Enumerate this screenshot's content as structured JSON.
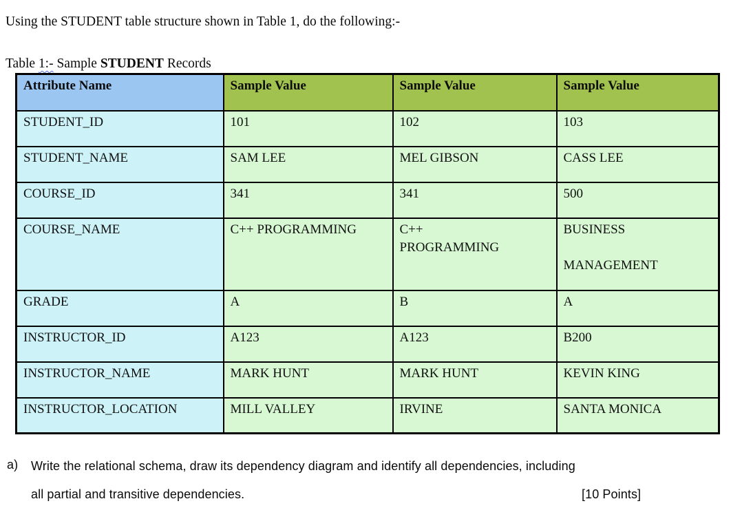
{
  "page": {
    "intro": "Using the STUDENT table structure shown in Table 1, do the following:-",
    "caption": {
      "part1": "Table ",
      "squiggle": "1:-",
      "part2": " Sample ",
      "bold": "STUDENT",
      "part3": " Records"
    }
  },
  "table": {
    "header": {
      "attribute": "Attribute Name",
      "samples": [
        "Sample Value",
        "Sample Value",
        "Sample Value"
      ]
    },
    "rows": [
      {
        "attribute": "STUDENT_ID",
        "values": [
          [
            "101"
          ],
          [
            "102"
          ],
          [
            "103"
          ]
        ]
      },
      {
        "attribute": "STUDENT_NAME",
        "values": [
          [
            "SAM LEE"
          ],
          [
            "MEL GIBSON"
          ],
          [
            "CASS LEE"
          ]
        ]
      },
      {
        "attribute": "COURSE_ID",
        "values": [
          [
            "341"
          ],
          [
            "341"
          ],
          [
            "500"
          ]
        ]
      },
      {
        "attribute": "COURSE_NAME",
        "values": [
          [
            "C++ PROGRAMMING"
          ],
          [
            "C++",
            "PROGRAMMING"
          ],
          [
            "BUSINESS",
            "",
            "MANAGEMENT"
          ]
        ]
      },
      {
        "attribute": "GRADE",
        "values": [
          [
            "A"
          ],
          [
            "B"
          ],
          [
            "A"
          ]
        ]
      },
      {
        "attribute": "INSTRUCTOR_ID",
        "values": [
          [
            "A123"
          ],
          [
            "A123"
          ],
          [
            "B200"
          ]
        ]
      },
      {
        "attribute": "INSTRUCTOR_NAME",
        "values": [
          [
            "MARK HUNT"
          ],
          [
            "MARK HUNT"
          ],
          [
            "KEVIN KING"
          ]
        ]
      },
      {
        "attribute": "INSTRUCTOR_LOCATION",
        "values": [
          [
            "MILL VALLEY"
          ],
          [
            "IRVINE"
          ],
          [
            "SANTA MONICA"
          ]
        ]
      }
    ],
    "colors": {
      "header_attribute_bg": "#9CC6F2",
      "header_sample_bg": "#A2C24F",
      "attribute_col_bg": "#CDF2F8",
      "value_cell_bg": "#D7F8D2",
      "border": "#000000",
      "spellcheck_underline": "#4A6FE3"
    }
  },
  "question": {
    "label": "a)",
    "line1": "Write the relational schema, draw its dependency diagram and identify all dependencies, including",
    "line2": "all partial and transitive dependencies.",
    "points": "[10 Points]"
  }
}
